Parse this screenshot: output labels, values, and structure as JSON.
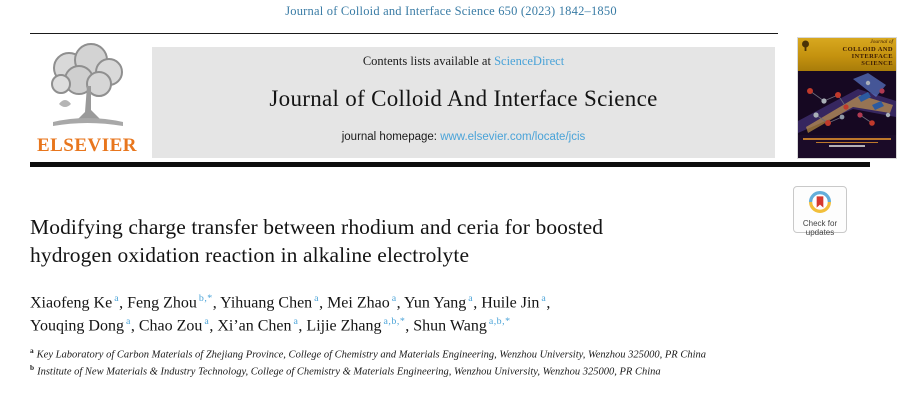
{
  "citation": "Journal of Colloid and Interface Science 650 (2023) 1842–1850",
  "publisher": {
    "name": "ELSEVIER"
  },
  "banner": {
    "contents_prefix": "Contents lists available at ",
    "sciencedirect_link": "ScienceDirect",
    "journal_name": "Journal of Colloid And Interface Science",
    "homepage_prefix": "journal homepage: ",
    "homepage_link": "www.elsevier.com/locate/jcis"
  },
  "cover": {
    "title_italic": "Journal of",
    "title_caps_lines": [
      "COLLOID AND",
      "INTERFACE",
      "SCIENCE"
    ]
  },
  "badge": {
    "line1": "Check for",
    "line2": "updates"
  },
  "article": {
    "title_lines": [
      "Modifying charge transfer between rhodium and ceria for boosted",
      "hydrogen oxidation reaction in alkaline electrolyte"
    ],
    "author_lines": [
      [
        {
          "name": "Xiaofeng Ke",
          "sup": "a"
        },
        {
          "name": "Feng Zhou",
          "sup": "b,*"
        },
        {
          "name": "Yihuang Chen",
          "sup": "a"
        },
        {
          "name": "Mei Zhao",
          "sup": "a"
        },
        {
          "name": "Yun Yang",
          "sup": "a"
        },
        {
          "name": "Huile Jin",
          "sup": "a"
        }
      ],
      [
        {
          "name": "Youqing Dong",
          "sup": "a"
        },
        {
          "name": "Chao Zou",
          "sup": "a"
        },
        {
          "name": "Xi’an Chen",
          "sup": "a"
        },
        {
          "name": "Lijie Zhang",
          "sup": "a,b,*"
        },
        {
          "name": "Shun Wang",
          "sup": "a,b,*"
        }
      ]
    ],
    "affiliations": [
      {
        "sup": "a",
        "text": "Key Laboratory of Carbon Materials of Zhejiang Province, College of Chemistry and Materials Engineering, Wenzhou University, Wenzhou 325000, PR China"
      },
      {
        "sup": "b",
        "text": "Institute of New Materials & Industry Technology, College of Chemistry & Materials Engineering, Wenzhou University, Wenzhou 325000, PR China"
      }
    ]
  },
  "colors": {
    "citation_teal": "#3a7ca5",
    "link_blue": "#4aa3d8",
    "elsevier_orange": "#e8761d",
    "banner_gray": "#e5e5e5",
    "cover_gold": "#c4920f",
    "cover_purple": "#1b0b28",
    "badge_ring_blue": "#63aeda",
    "badge_ring_yellow": "#f2bf3a",
    "badge_bookmark_red": "#d5392f"
  }
}
